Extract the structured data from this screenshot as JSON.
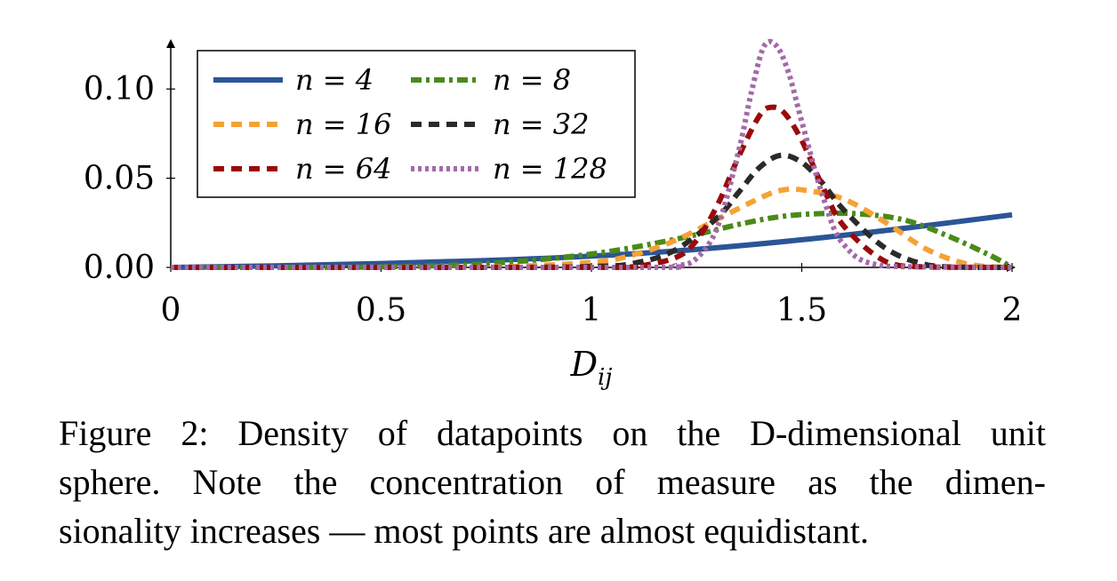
{
  "chart_data": {
    "type": "line",
    "xlabel": "D_ij",
    "ylabel": "",
    "xlim": [
      0,
      2
    ],
    "ylim": [
      0,
      0.125
    ],
    "x_ticks": [
      "0",
      "0.5",
      "1",
      "1.5",
      "2"
    ],
    "y_ticks": [
      "0.00",
      "0.05",
      "0.10"
    ],
    "x_tick_values": [
      0,
      0.5,
      1,
      1.5,
      2
    ],
    "y_tick_values": [
      0,
      0.05,
      0.1
    ],
    "legend_position": "top-left",
    "grid": false,
    "series": [
      {
        "name": "n = 4",
        "color": "#2b5597",
        "dash": "solid",
        "x": [
          0,
          0.25,
          0.5,
          0.75,
          1.0,
          1.25,
          1.5,
          1.75,
          2.0
        ],
        "y": [
          0.0,
          0.0009,
          0.0022,
          0.0039,
          0.0063,
          0.0101,
          0.0155,
          0.0221,
          0.0295
        ]
      },
      {
        "name": "n = 8",
        "color": "#4a8a1a",
        "dash": "dashdot",
        "x": [
          0,
          0.25,
          0.5,
          0.75,
          1.0,
          1.2,
          1.35,
          1.45,
          1.55,
          1.65,
          1.75,
          1.85,
          1.95,
          2.0
        ],
        "y": [
          0.0,
          0.0,
          0.0003,
          0.0021,
          0.0075,
          0.0158,
          0.0241,
          0.0285,
          0.0302,
          0.0298,
          0.0262,
          0.0174,
          0.0065,
          0.0
        ]
      },
      {
        "name": "n = 16",
        "color": "#f5a234",
        "dash": "dashed",
        "x": [
          0,
          0.5,
          0.75,
          1.0,
          1.1,
          1.2,
          1.3,
          1.4,
          1.45,
          1.5,
          1.6,
          1.7,
          1.8,
          1.9,
          2.0
        ],
        "y": [
          0.0,
          0.0,
          0.0001,
          0.0028,
          0.0071,
          0.0152,
          0.0271,
          0.0388,
          0.0432,
          0.0435,
          0.0383,
          0.0251,
          0.0098,
          0.0016,
          0.0
        ]
      },
      {
        "name": "n = 32",
        "color": "#2a2a2a",
        "dash": "dashed",
        "x": [
          0,
          0.75,
          1.0,
          1.1,
          1.2,
          1.3,
          1.35,
          1.4,
          1.45,
          1.5,
          1.55,
          1.6,
          1.7,
          1.8,
          1.9,
          2.0
        ],
        "y": [
          0.0,
          0.0,
          0.0005,
          0.0023,
          0.0098,
          0.0281,
          0.0421,
          0.0561,
          0.0628,
          0.0589,
          0.0471,
          0.0322,
          0.0106,
          0.0013,
          0.0,
          0.0
        ]
      },
      {
        "name": "n = 64",
        "color": "#9a0a0a",
        "dash": "dashed",
        "x": [
          0,
          1.0,
          1.1,
          1.2,
          1.25,
          1.3,
          1.35,
          1.4,
          1.43,
          1.46,
          1.5,
          1.55,
          1.6,
          1.7,
          1.8,
          2.0
        ],
        "y": [
          0.0,
          0.0,
          0.0004,
          0.0055,
          0.0152,
          0.0351,
          0.0621,
          0.0852,
          0.0898,
          0.0862,
          0.0712,
          0.0452,
          0.0232,
          0.0032,
          0.0002,
          0.0
        ]
      },
      {
        "name": "n = 128",
        "color": "#a36aa8",
        "dash": "dotted",
        "x": [
          0,
          1.1,
          1.2,
          1.25,
          1.3,
          1.35,
          1.38,
          1.41,
          1.44,
          1.47,
          1.5,
          1.55,
          1.6,
          1.7,
          2.0
        ],
        "y": [
          0.0,
          0.0,
          0.0009,
          0.0051,
          0.0228,
          0.0652,
          0.0978,
          0.1238,
          0.1242,
          0.1082,
          0.0818,
          0.0401,
          0.0128,
          0.0007,
          0.0
        ]
      }
    ]
  },
  "caption": {
    "line1": "Figure 2: Density of datapoints on the D-dimensional unit",
    "line2": "sphere.  Note the concentration of measure as the dimen-",
    "line3": "sionality increases — most points are almost equidistant."
  }
}
